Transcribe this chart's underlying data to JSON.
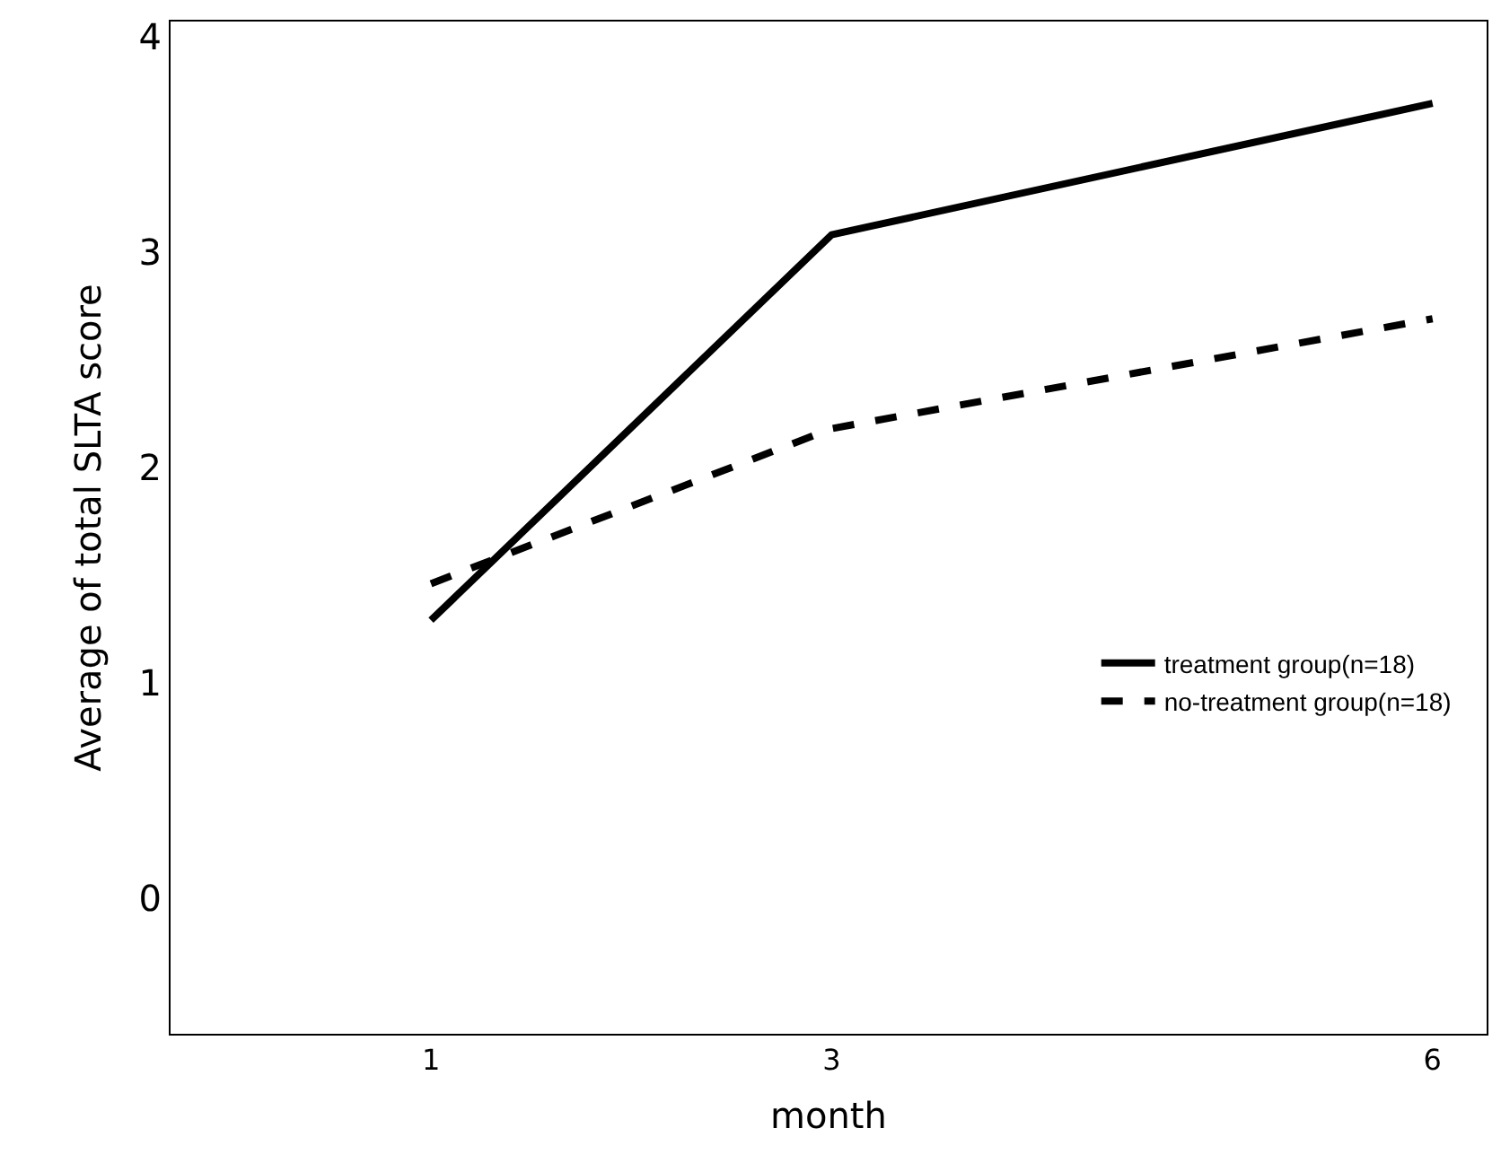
{
  "chart_data": {
    "type": "line",
    "xlabel": "month",
    "ylabel": "Average of total SLTA score",
    "x": [
      1,
      3,
      6
    ],
    "series": [
      {
        "name": "treatment group(n=18)",
        "color": "#000000",
        "values": [
          1.29,
          3.08,
          3.69
        ],
        "line_style": "solid"
      },
      {
        "name": "no-treatment group(n=18)",
        "color": "#000000",
        "values": [
          1.46,
          2.18,
          2.69
        ],
        "line_style": "dashed"
      }
    ],
    "xlim": [
      -0.3,
      6.27
    ],
    "xticks": [
      1,
      3,
      6
    ],
    "ylim": [
      -0.63,
      4.07
    ],
    "yticks": [
      0,
      1,
      2,
      3,
      4
    ],
    "legend": "bottom right",
    "marker": "none"
  }
}
